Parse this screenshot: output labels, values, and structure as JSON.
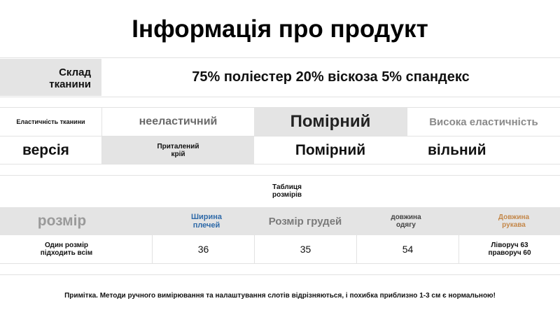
{
  "title": "Інформація про продукт",
  "fabric": {
    "label": "Склад тканини",
    "value": "75% поліестер 20% віскоза 5% спандекс"
  },
  "elasticity": {
    "label": "Еластичність тканини",
    "options": [
      "нееластичний",
      "Помірний",
      "Висока еластичність"
    ],
    "selected": "Помірний"
  },
  "fit": {
    "label": "версія",
    "options": [
      "Приталений крій",
      "Помірний",
      "вільний"
    ],
    "selected": "Приталений крій"
  },
  "size_table": {
    "caption": "Таблиця розмірів",
    "headers": [
      "розмір",
      "Ширина плечей",
      "Розмір грудей",
      "довжина одягу",
      "Довжина рукава"
    ],
    "header_colors": [
      "#9a9a9a",
      "#2f6aa8",
      "#7a7a7a",
      "#444444",
      "#c4884a"
    ],
    "row": [
      "Один розмір підходить всім",
      "36",
      "35",
      "54",
      "Ліворуч 63 праворуч 60"
    ]
  },
  "note": "Примітка. Методи ручного вимірювання та налаштування слотів відрізняються, і похибка приблизно 1-3 см є нормальною!"
}
